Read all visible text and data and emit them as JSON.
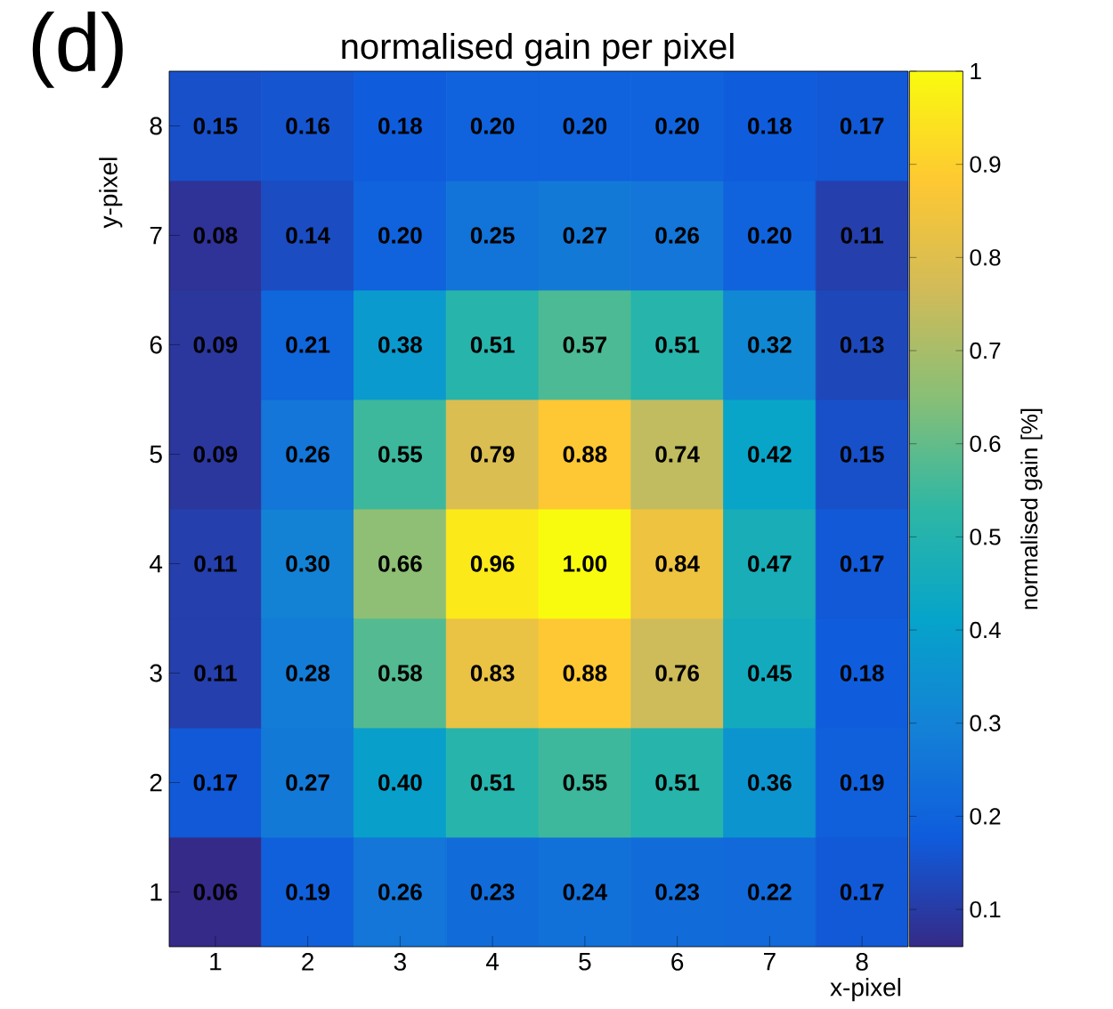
{
  "chart_data": {
    "type": "heatmap",
    "title": "normalised gain per pixel",
    "xlabel": "x-pixel",
    "ylabel": "y-pixel",
    "clabel": "normalised gain [%]",
    "annotations": [
      "(d)"
    ],
    "categories": [
      "1",
      "2",
      "3",
      "4",
      "5",
      "6",
      "7",
      "8"
    ],
    "y_categories": [
      "8",
      "7",
      "6",
      "5",
      "4",
      "3",
      "2",
      "1"
    ],
    "cells": [
      [
        0.15,
        0.16,
        0.18,
        0.2,
        0.2,
        0.2,
        0.18,
        0.17
      ],
      [
        0.08,
        0.14,
        0.2,
        0.25,
        0.27,
        0.26,
        0.2,
        0.11
      ],
      [
        0.09,
        0.21,
        0.38,
        0.51,
        0.57,
        0.51,
        0.32,
        0.13
      ],
      [
        0.09,
        0.26,
        0.55,
        0.79,
        0.88,
        0.74,
        0.42,
        0.15
      ],
      [
        0.11,
        0.3,
        0.66,
        0.96,
        1.0,
        0.84,
        0.47,
        0.17
      ],
      [
        0.11,
        0.28,
        0.58,
        0.83,
        0.88,
        0.76,
        0.45,
        0.18
      ],
      [
        0.17,
        0.27,
        0.4,
        0.51,
        0.55,
        0.51,
        0.36,
        0.19
      ],
      [
        0.06,
        0.19,
        0.26,
        0.23,
        0.24,
        0.23,
        0.22,
        0.17
      ]
    ],
    "cell_labels": [
      [
        "0.15",
        "0.16",
        "0.18",
        "0.20",
        "0.20",
        "0.20",
        "0.18",
        "0.17"
      ],
      [
        "0.08",
        "0.14",
        "0.20",
        "0.25",
        "0.27",
        "0.26",
        "0.20",
        "0.11"
      ],
      [
        "0.09",
        "0.21",
        "0.38",
        "0.51",
        "0.57",
        "0.51",
        "0.32",
        "0.13"
      ],
      [
        "0.09",
        "0.26",
        "0.55",
        "0.79",
        "0.88",
        "0.74",
        "0.42",
        "0.15"
      ],
      [
        "0.11",
        "0.30",
        "0.66",
        "0.96",
        "1.00",
        "0.84",
        "0.47",
        "0.17"
      ],
      [
        "0.11",
        "0.28",
        "0.58",
        "0.83",
        "0.88",
        "0.76",
        "0.45",
        "0.18"
      ],
      [
        "0.17",
        "0.27",
        "0.40",
        "0.51",
        "0.55",
        "0.51",
        "0.36",
        "0.19"
      ],
      [
        "0.06",
        "0.19",
        "0.26",
        "0.23",
        "0.24",
        "0.23",
        "0.22",
        "0.17"
      ]
    ],
    "data_labels": true,
    "clim": [
      0.06,
      1
    ],
    "cticks": [
      0.1,
      0.2,
      0.3,
      0.4,
      0.5,
      0.6,
      0.7,
      0.8,
      0.9,
      1
    ]
  }
}
